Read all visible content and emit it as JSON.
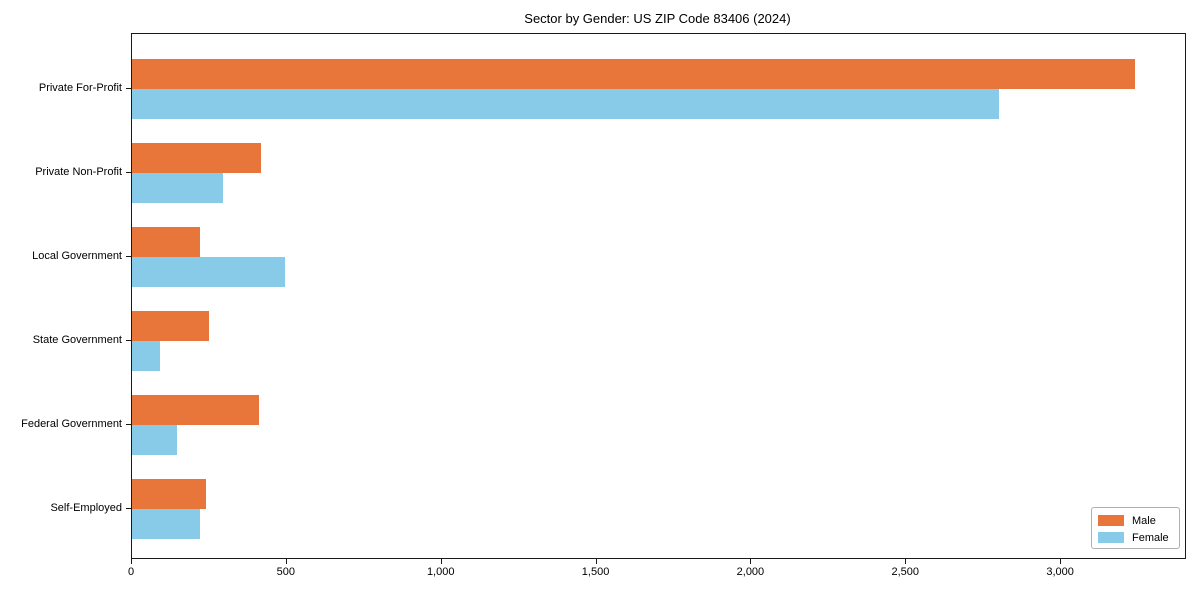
{
  "chart_data": {
    "type": "bar",
    "orientation": "horizontal",
    "title": "Sector by Gender: US ZIP Code 83406 (2024)",
    "categories": [
      "Private For-Profit",
      "Private Non-Profit",
      "Local Government",
      "State Government",
      "Federal Government",
      "Self-Employed"
    ],
    "series": [
      {
        "name": "Male",
        "color": "#E8763B",
        "values": [
          3240,
          415,
          220,
          250,
          410,
          240
        ]
      },
      {
        "name": "Female",
        "color": "#87CBE8",
        "values": [
          2800,
          295,
          495,
          90,
          145,
          220
        ]
      }
    ],
    "xlabel": "",
    "ylabel": "",
    "xlim": [
      0,
      3400
    ],
    "xticks": [
      0,
      500,
      1000,
      1500,
      2000,
      2500,
      3000
    ],
    "xtick_labels": [
      "0",
      "500",
      "1,000",
      "1,500",
      "2,000",
      "2,500",
      "3,000"
    ],
    "grid": false,
    "legend": {
      "position": "lower right",
      "entries": [
        "Male",
        "Female"
      ]
    }
  }
}
